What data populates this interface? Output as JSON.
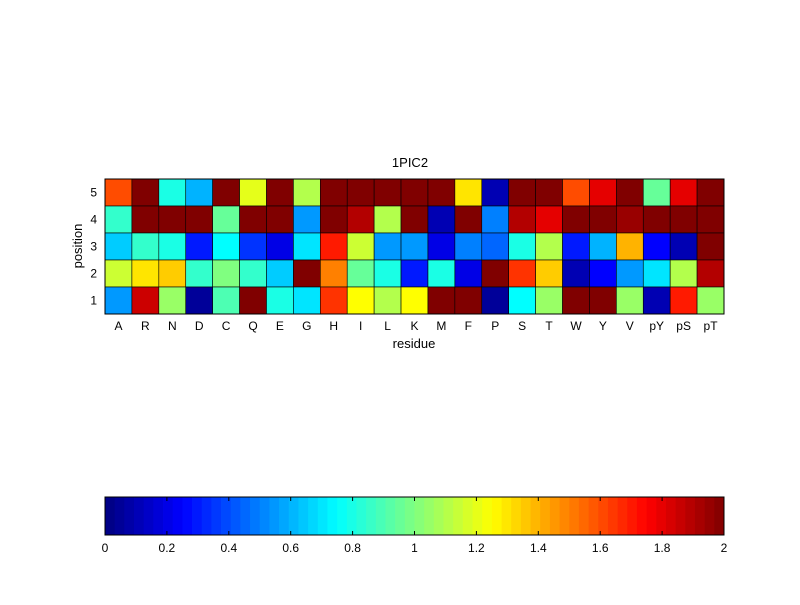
{
  "chart_data": {
    "type": "heatmap",
    "title": "1PIC2",
    "xlabel": "residue",
    "ylabel": "position",
    "x_categories": [
      "A",
      "R",
      "N",
      "D",
      "C",
      "Q",
      "E",
      "G",
      "H",
      "I",
      "L",
      "K",
      "M",
      "F",
      "P",
      "S",
      "T",
      "W",
      "Y",
      "V",
      "pY",
      "pS",
      "pT"
    ],
    "y_categories": [
      "1",
      "2",
      "3",
      "4",
      "5"
    ],
    "values": {
      "5": [
        1.6,
        2.0,
        0.8,
        0.6,
        2.0,
        1.2,
        2.0,
        1.1,
        2.0,
        2.0,
        2.0,
        2.0,
        2.0,
        1.3,
        0.1,
        2.0,
        2.0,
        1.6,
        1.8,
        2.0,
        0.95,
        1.8,
        2.0
      ],
      "4": [
        0.85,
        2.0,
        2.0,
        2.0,
        0.95,
        2.0,
        2.0,
        0.55,
        2.0,
        1.9,
        1.1,
        2.0,
        0.1,
        2.0,
        0.5,
        1.9,
        1.8,
        2.0,
        2.0,
        1.95,
        2.0,
        2.0,
        2.0
      ],
      "3": [
        0.65,
        0.85,
        0.8,
        0.3,
        0.75,
        0.35,
        0.2,
        0.7,
        1.7,
        1.15,
        0.55,
        0.55,
        0.2,
        0.5,
        0.45,
        0.8,
        1.1,
        0.3,
        0.6,
        1.4,
        0.25,
        0.1,
        2.0
      ],
      "2": [
        1.15,
        1.3,
        1.35,
        0.85,
        1.0,
        0.85,
        0.65,
        2.0,
        1.5,
        0.95,
        0.8,
        0.3,
        0.8,
        0.2,
        2.0,
        1.65,
        1.35,
        0.1,
        0.25,
        0.55,
        0.7,
        1.1,
        1.9
      ],
      "1": [
        0.55,
        1.85,
        1.05,
        0.05,
        0.9,
        2.0,
        0.8,
        0.7,
        1.65,
        1.25,
        1.1,
        1.25,
        2.0,
        2.0,
        0.05,
        0.75,
        1.05,
        2.0,
        2.0,
        1.05,
        0.1,
        1.7,
        1.05
      ]
    },
    "colorbar": {
      "colormap": "jet",
      "min": 0,
      "max": 2,
      "ticks": [
        "0",
        "0.2",
        "0.4",
        "0.6",
        "0.8",
        "1",
        "1.2",
        "1.4",
        "1.6",
        "1.8",
        "2"
      ],
      "placement": "bottom"
    },
    "grid": false
  }
}
